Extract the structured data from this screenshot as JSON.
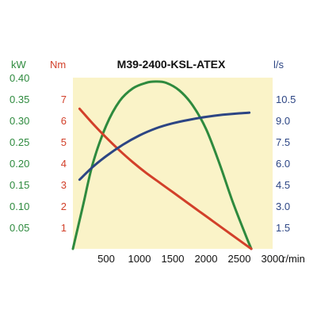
{
  "chart_data": {
    "type": "line",
    "title": "M39-2400-KSL-ATEX",
    "x_axis": {
      "unit": "r/min",
      "ticks": [
        "500",
        "1000",
        "1500",
        "2000",
        "2500",
        "3000"
      ],
      "range": [
        0,
        3000
      ]
    },
    "y_axes": [
      {
        "id": "power",
        "unit": "kW",
        "color": "#2e8a3e",
        "ticks": [
          "0.05",
          "0.10",
          "0.15",
          "0.20",
          "0.25",
          "0.30",
          "0.35",
          "0.40"
        ],
        "range": [
          0,
          0.4
        ]
      },
      {
        "id": "torque",
        "unit": "Nm",
        "color": "#d2402a",
        "ticks": [
          "1",
          "2",
          "3",
          "4",
          "5",
          "6",
          "7"
        ],
        "range": [
          0,
          8
        ]
      },
      {
        "id": "flow",
        "unit": "l/s",
        "color": "#2c4584",
        "ticks": [
          "1.5",
          "3.0",
          "4.5",
          "6.0",
          "7.5",
          "9.0",
          "10.5"
        ],
        "range": [
          0,
          12
        ]
      }
    ],
    "series": [
      {
        "axis": "power",
        "color": "#2e8a3e",
        "x": [
          0,
          150,
          300,
          500,
          700,
          900,
          1100,
          1240,
          1400,
          1600,
          1800,
          2000,
          2200,
          2400,
          2600,
          2680
        ],
        "y": [
          0.0,
          0.1,
          0.2,
          0.288,
          0.345,
          0.375,
          0.388,
          0.391,
          0.388,
          0.37,
          0.335,
          0.28,
          0.2,
          0.11,
          0.03,
          0.0
        ]
      },
      {
        "axis": "torque",
        "color": "#d2402a",
        "x": [
          100,
          300,
          500,
          700,
          900,
          1100,
          1300,
          1500,
          1700,
          1900,
          2100,
          2300,
          2500,
          2680
        ],
        "y": [
          6.55,
          5.85,
          5.2,
          4.6,
          4.05,
          3.55,
          3.1,
          2.65,
          2.2,
          1.75,
          1.3,
          0.85,
          0.4,
          0.0
        ]
      },
      {
        "axis": "flow",
        "color": "#2c4584",
        "x": [
          100,
          300,
          500,
          750,
          1000,
          1250,
          1500,
          1750,
          2000,
          2250,
          2500,
          2650
        ],
        "y": [
          4.85,
          5.75,
          6.5,
          7.3,
          7.95,
          8.45,
          8.8,
          9.05,
          9.25,
          9.4,
          9.5,
          9.55
        ]
      }
    ],
    "plot_background": "#faf3c8",
    "grid": false,
    "legend": "none"
  }
}
